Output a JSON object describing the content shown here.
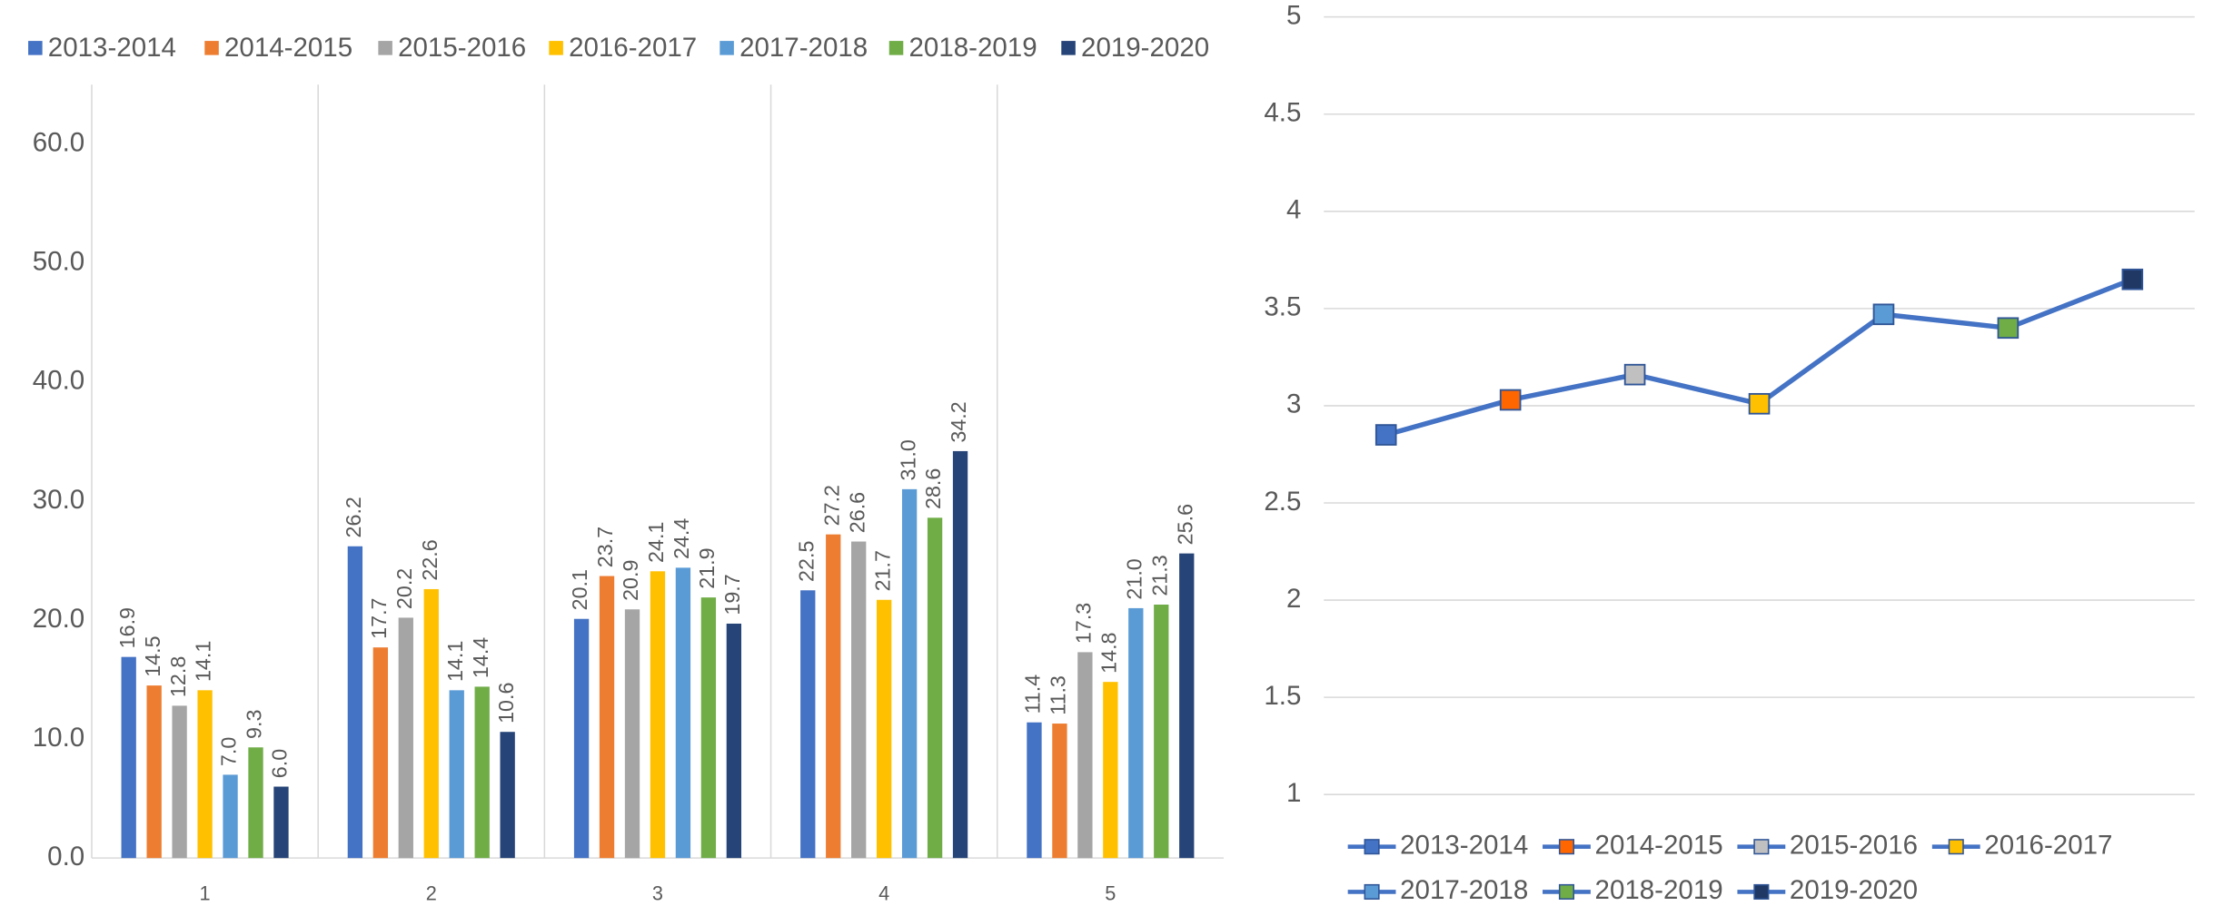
{
  "chart_data": [
    {
      "type": "bar",
      "categories": [
        "1",
        "2",
        "3",
        "4",
        "5"
      ],
      "series": [
        {
          "name": "2013-2014",
          "color": "#4472c4",
          "values": [
            16.9,
            26.2,
            20.1,
            22.5,
            11.4
          ],
          "value_labels": [
            "16.9",
            "26.2",
            "20.1",
            "22.5",
            "11.4"
          ]
        },
        {
          "name": "2014-2015",
          "color": "#ed7d31",
          "values": [
            14.5,
            17.7,
            23.7,
            27.2,
            11.3
          ],
          "value_labels": [
            "14.5",
            "17.7",
            "23.7",
            "27.2",
            "11.3"
          ]
        },
        {
          "name": "2015-2016",
          "color": "#a5a5a5",
          "values": [
            12.8,
            20.2,
            20.9,
            26.6,
            17.3
          ],
          "value_labels": [
            "12.8",
            "20.2",
            "20.9",
            "26.6",
            "17.3"
          ]
        },
        {
          "name": "2016-2017",
          "color": "#ffc000",
          "values": [
            14.1,
            22.6,
            24.1,
            21.7,
            14.8
          ],
          "value_labels": [
            "14.1",
            "22.6",
            "24.1",
            "21.7",
            "14.8"
          ]
        },
        {
          "name": "2017-2018",
          "color": "#5b9bd5",
          "values": [
            7.0,
            14.1,
            24.4,
            31.0,
            21.0
          ],
          "value_labels": [
            "7.0",
            "14.1",
            "24.4",
            "31.0",
            "21.0"
          ]
        },
        {
          "name": "2018-2019",
          "color": "#70ad47",
          "values": [
            9.3,
            14.4,
            21.9,
            28.6,
            21.3
          ],
          "value_labels": [
            "9.3",
            "14.4",
            "21.9",
            "28.6",
            "21.3"
          ]
        },
        {
          "name": "2019-2020",
          "color": "#264478",
          "values": [
            6.0,
            10.6,
            19.7,
            34.2,
            25.6
          ],
          "value_labels": [
            "6.0",
            "10.6",
            "19.7",
            "34.2",
            "25.6"
          ]
        }
      ],
      "ylim": [
        0,
        65
      ],
      "yticks": [
        {
          "value": 0,
          "label": "0.0"
        },
        {
          "value": 10,
          "label": "10.0"
        },
        {
          "value": 20,
          "label": "20.0"
        },
        {
          "value": 30,
          "label": "30.0"
        },
        {
          "value": 40,
          "label": "40.0"
        },
        {
          "value": 50,
          "label": "50.0"
        },
        {
          "value": 60,
          "label": "60.0"
        }
      ],
      "grid": false,
      "legend": "top"
    },
    {
      "type": "line",
      "categories": [
        "2013-2014",
        "2014-2015",
        "2015-2016",
        "2016-2017",
        "2017-2018",
        "2018-2019",
        "2019-2020"
      ],
      "values": [
        2.85,
        3.03,
        3.16,
        3.01,
        3.47,
        3.4,
        3.65
      ],
      "color": "#4472c4",
      "point_colors": [
        "#4472c4",
        "#ff6600",
        "#c0c0c0",
        "#ffc000",
        "#5b9bd5",
        "#70ad47",
        "#1f3864"
      ],
      "ylim": [
        1,
        5
      ],
      "yticks": [
        1,
        1.5,
        2,
        2.5,
        3,
        3.5,
        4,
        4.5,
        5
      ],
      "grid": true,
      "legend": "bottom"
    }
  ]
}
